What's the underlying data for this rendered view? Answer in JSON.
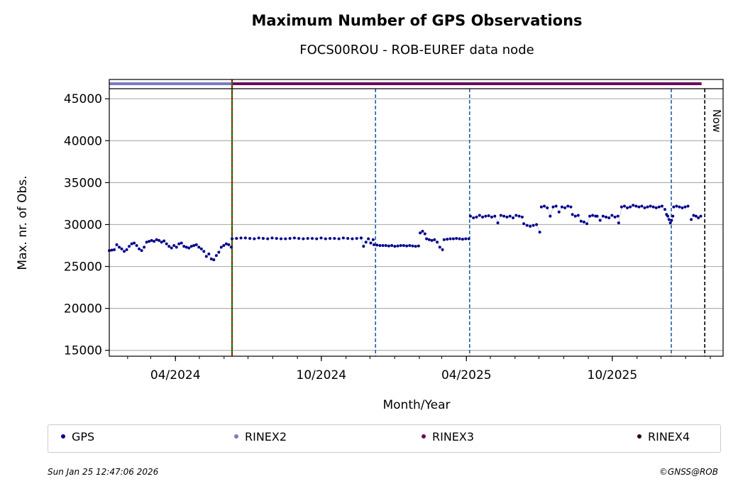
{
  "chart_data": {
    "type": "scatter",
    "title": "Maximum Number of GPS Observations",
    "subtitle": "FOCS00ROU - ROB-EUREF data node",
    "xlabel": "Month/Year",
    "ylabel": "Max. nr. of Obs.",
    "x_range": [
      "2024-01-09",
      "2026-02-17"
    ],
    "ylim": [
      14300,
      46200
    ],
    "y_ticks": [
      15000,
      20000,
      25000,
      30000,
      35000,
      40000,
      45000
    ],
    "x_ticks": [
      "04/2024",
      "10/2024",
      "04/2025",
      "10/2025"
    ],
    "x_tick_dates": [
      "2024-04-01",
      "2024-10-01",
      "2025-04-01",
      "2025-10-01"
    ],
    "grid": "horizontal",
    "now_label": "Now",
    "now_date": "2026-01-25",
    "rinex_bar": {
      "rinex2": [
        "2024-01-09",
        "2024-06-11"
      ],
      "rinex3": [
        "2024-06-11",
        "2026-01-21"
      ]
    },
    "event_lines": {
      "green_red": "2024-06-11",
      "blue": [
        "2024-12-08",
        "2025-04-05",
        "2025-12-14"
      ]
    },
    "series": [
      {
        "name": "GPS",
        "color": "#00008b",
        "segments": [
          {
            "from": "2024-01-09",
            "to": "2024-06-10",
            "values": [
              26900,
              26950,
              27000,
              27600,
              27300,
              27100,
              26800,
              27000,
              27400,
              27700,
              27800,
              27500,
              27100,
              26900,
              27300,
              27900,
              28000,
              28100,
              28000,
              28200,
              28100,
              27900,
              28050,
              27700,
              27400,
              27200,
              27500,
              27300,
              27700,
              27800,
              27400,
              27300,
              27200,
              27400,
              27500,
              27600,
              27300,
              27100,
              26800,
              26200,
              26500,
              25900,
              25800,
              26300,
              26700,
              27300,
              27500,
              27700,
              27600,
              27300
            ]
          },
          {
            "from": "2024-06-11",
            "to": "2024-11-20",
            "values": [
              28300,
              28350,
              28400,
              28400,
              28350,
              28300,
              28400,
              28350,
              28300,
              28400,
              28350,
              28300,
              28300,
              28350,
              28400,
              28350,
              28300,
              28350,
              28350,
              28300,
              28400,
              28300,
              28350,
              28350,
              28300,
              28400,
              28350,
              28300,
              28350,
              28400
            ]
          },
          {
            "from": "2024-11-20",
            "to": "2024-12-05",
            "values": [
              28400,
              27400,
              27900,
              28300,
              27800,
              28200
            ]
          },
          {
            "from": "2024-12-06",
            "to": "2025-01-31",
            "values": [
              27600,
              27550,
              27500,
              27500,
              27500,
              27450,
              27500,
              27400,
              27450,
              27500,
              27500,
              27450,
              27500,
              27450,
              27400,
              27450
            ]
          },
          {
            "from": "2025-02-02",
            "to": "2025-02-08",
            "values": [
              29000,
              29200,
              28900
            ]
          },
          {
            "from": "2025-02-10",
            "to": "2025-03-02",
            "values": [
              28300,
              28200,
              28100,
              28200,
              27900,
              27300,
              27000
            ]
          },
          {
            "from": "2025-03-04",
            "to": "2025-04-04",
            "values": [
              28200,
              28250,
              28300,
              28300,
              28350,
              28300,
              28250,
              28300,
              28300
            ]
          },
          {
            "from": "2025-04-06",
            "to": "2025-06-10",
            "values": [
              31000,
              30800,
              30900,
              31100,
              30900,
              31000,
              31050,
              30900,
              31000,
              30200,
              31100,
              31000,
              30900,
              31000,
              30800,
              31100,
              31000,
              30900
            ]
          },
          {
            "from": "2025-06-12",
            "to": "2025-07-02",
            "values": [
              30100,
              29900,
              29800,
              29900,
              30000,
              29100
            ]
          },
          {
            "from": "2025-07-04",
            "to": "2025-08-10",
            "values": [
              32100,
              32200,
              32000,
              31000,
              32100,
              32200,
              31500,
              32100,
              32000,
              32200,
              32100
            ]
          },
          {
            "from": "2025-08-12",
            "to": "2025-09-10",
            "values": [
              31200,
              31000,
              31100,
              30400,
              30300,
              30100,
              31000,
              31100,
              31000
            ]
          },
          {
            "from": "2025-09-12",
            "to": "2025-10-08",
            "values": [
              31000,
              30500,
              31000,
              30900,
              30800,
              31100,
              30900,
              31000
            ]
          },
          {
            "from": "2025-10-09",
            "to": "2025-12-06",
            "values": [
              30200,
              32100,
              32200,
              32000,
              32100,
              32300,
              32200,
              32100,
              32200,
              32000,
              32100,
              32200,
              32100,
              32000,
              32100,
              32200,
              31800
            ]
          },
          {
            "from": "2025-12-08",
            "to": "2025-12-16",
            "values": [
              31200,
              31000,
              30600,
              30200,
              30500,
              31000
            ]
          },
          {
            "from": "2025-12-17",
            "to": "2026-01-04",
            "values": [
              32100,
              32200,
              32100,
              32000,
              32100,
              32200
            ]
          },
          {
            "from": "2026-01-08",
            "to": "2026-01-20",
            "values": [
              30600,
              31100,
              31000,
              30800,
              31000
            ]
          }
        ]
      }
    ]
  },
  "legend": [
    {
      "label": "GPS",
      "color": "#00008b"
    },
    {
      "label": "RINEX2",
      "color": "#7b7bbf"
    },
    {
      "label": "RINEX3",
      "color": "#6b0a5e"
    },
    {
      "label": "RINEX4",
      "color": "#2b0011"
    }
  ],
  "footer": {
    "date": "Sun Jan 25 12:47:06 2026",
    "copyright": "©GNSS@ROB"
  }
}
